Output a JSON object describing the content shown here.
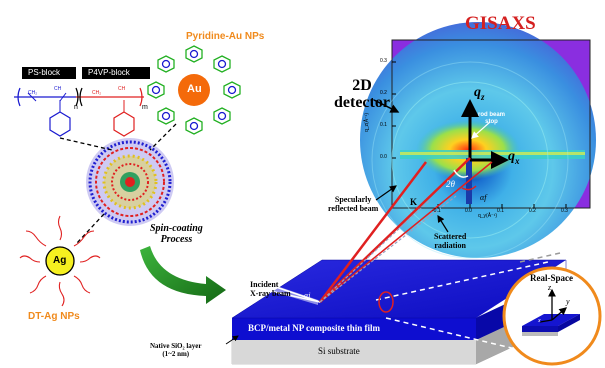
{
  "title": "GISAXS",
  "detector_label_line1": "2D",
  "detector_label_line2": "detector",
  "rod_beam_stop_line1": "rod beam",
  "rod_beam_stop_line2": "stop",
  "qz_label": "q",
  "qz_sub": "z",
  "qx_label": "q",
  "qx_sub": "x",
  "axis_y_label": "q_z(Å⁻¹)",
  "axis_x_label": "q_y(Å⁻¹)",
  "y_ticks": [
    "0.3",
    "0.2",
    "0.1",
    "0.0"
  ],
  "x_ticks": [
    "-0.1",
    "0.0",
    "0.1",
    "0.2",
    "0.3"
  ],
  "two_theta": "2θ",
  "alpha_f": "αf",
  "alpha_i": "αi",
  "k_label": "K",
  "ps_block": "PS-block",
  "p4vp_block": "P4VP-block",
  "subscript_n": "n",
  "subscript_m": "m",
  "chem_ch2": "CH₂",
  "chem_ch": "CH",
  "pyridine_title": "Pyridine-Au NPs",
  "au_label": "Au",
  "ag_label": "Ag",
  "dt_ag_title": "DT-Ag NPs",
  "spin_line1": "Spin-coating",
  "spin_line2": "Process",
  "specular_line1": "Specularly",
  "specular_line2": "reflected beam",
  "scattered_line1": "Scattered",
  "scattered_line2": "radiation",
  "incident_line1": "Incident",
  "incident_line2": "X-ray beam",
  "film_label": "BCP/metal NP composite thin film",
  "substrate_label": "Si substrate",
  "native_line1": "Native SiO₂ layer",
  "native_line2": "(1~2 nm)",
  "realspace_title": "Real-Space",
  "axis_z": "z",
  "axis_y": "y",
  "axis_x": "x",
  "colors": {
    "title_red": "#d42020",
    "orange": "#f08a1c",
    "film_blue": "#1616d8",
    "beam_red": "#e02020",
    "arrow_green": "#1f8a1f",
    "au_orange": "#f46a0a",
    "ag_yellow": "#f6f020"
  }
}
